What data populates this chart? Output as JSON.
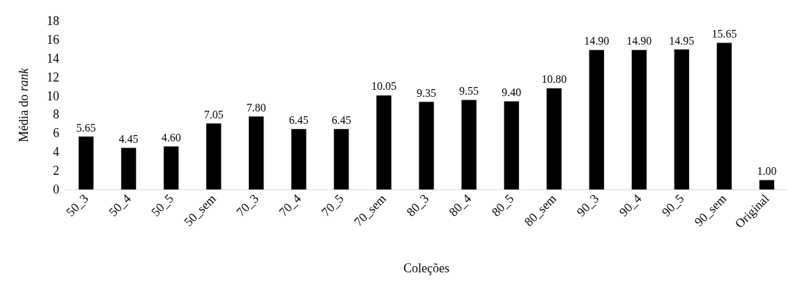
{
  "chart_data": {
    "type": "bar",
    "xlabel": "Coleções",
    "ylabel": "Média do rank",
    "categories": [
      "50_3",
      "50_4",
      "50_5",
      "50_sem",
      "70_3",
      "70_4",
      "70_5",
      "70_sem",
      "80_3",
      "80_4",
      "80_5",
      "80_sem",
      "90_3",
      "90_4",
      "90_5",
      "90_sem",
      "Original"
    ],
    "values": [
      5.65,
      4.45,
      4.6,
      7.05,
      7.8,
      6.45,
      6.45,
      10.05,
      9.35,
      9.55,
      9.4,
      10.8,
      14.9,
      14.9,
      14.95,
      15.65,
      1.0
    ],
    "value_labels": [
      "5.65",
      "4.45",
      "4.60",
      "7.05",
      "7.80",
      "6.45",
      "6.45",
      "10.05",
      "9.35",
      "9.55",
      "9.40",
      "10.80",
      "14.90",
      "14.90",
      "14.95",
      "15.65",
      "1.00"
    ],
    "color": "#000000",
    "ylim": [
      0,
      18
    ],
    "yticks": [
      0,
      2,
      4,
      6,
      8,
      10,
      12,
      14,
      16,
      18
    ],
    "grid": false
  }
}
